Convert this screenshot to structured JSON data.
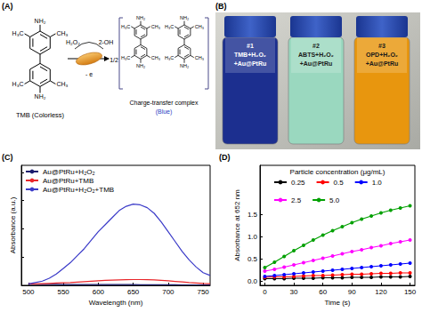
{
  "scheme": {
    "label": "(A)",
    "reactant": "TMB (Colorless)",
    "amine": "NH₂",
    "methyl_left": "H₃C",
    "methyl_right": "CH₃",
    "reagent": "H₂O₂",
    "radical": "2-OH",
    "electron": "- e",
    "coefficient": "1/2",
    "product_title": "Charge-transfer complex",
    "product_tag": "(Blue)"
  },
  "photo": {
    "label": "(B)",
    "vials": [
      {
        "lines": [
          "#1",
          "TMB+H₂O₂",
          "+Au@PtRu"
        ],
        "color": "#1c2f8f"
      },
      {
        "lines": [
          "#2",
          "ABTS+H₂O₂",
          "+Au@PtRu"
        ],
        "color": "#9ad8bf"
      },
      {
        "lines": [
          "#3",
          "OPD+H₂O₂",
          "+Au@PtRu"
        ],
        "color": "#e8960e"
      }
    ]
  },
  "chart_data": [
    {
      "type": "line",
      "panel_label": "(C)",
      "x_label": "Wavelength (nm)",
      "y_label": "Absorbance (a.u.)",
      "x": [
        500,
        510,
        520,
        530,
        540,
        550,
        560,
        570,
        580,
        590,
        600,
        610,
        620,
        630,
        640,
        650,
        660,
        670,
        680,
        690,
        700,
        710,
        720,
        730,
        740,
        750,
        760
      ],
      "xlim": [
        490,
        760
      ],
      "xticks": [
        500,
        550,
        600,
        650,
        700,
        750
      ],
      "ylim": [
        0,
        0.85
      ],
      "yticks": [
        0,
        0.2,
        0.4,
        0.6,
        0.8
      ],
      "tick_labels": "x",
      "grid": false,
      "legend": "upper left",
      "marker": "none",
      "series": [
        {
          "name": "Au@PtRu+H₂O₂",
          "color": "#1a1a6e",
          "values": [
            0.008,
            0.008,
            0.007,
            0.007,
            0.007,
            0.006,
            0.006,
            0.006,
            0.006,
            0.005,
            0.005,
            0.005,
            0.005,
            0.005,
            0.005,
            0.005,
            0.004,
            0.004,
            0.004,
            0.004,
            0.004,
            0.004,
            0.003,
            0.003,
            0.003,
            0.003,
            0.003
          ]
        },
        {
          "name": "Au@PtRu+TMB",
          "color": "#e8262a",
          "values": [
            0.01,
            0.01,
            0.012,
            0.014,
            0.016,
            0.018,
            0.02,
            0.023,
            0.026,
            0.029,
            0.032,
            0.035,
            0.037,
            0.039,
            0.04,
            0.041,
            0.041,
            0.04,
            0.038,
            0.035,
            0.032,
            0.028,
            0.024,
            0.02,
            0.017,
            0.014,
            0.012
          ]
        },
        {
          "name": "Au@PtRu+H₂O₂+TMB",
          "color": "#3a3ac8",
          "values": [
            0.01,
            0.02,
            0.03,
            0.05,
            0.08,
            0.12,
            0.16,
            0.21,
            0.26,
            0.32,
            0.38,
            0.43,
            0.48,
            0.53,
            0.56,
            0.575,
            0.57,
            0.55,
            0.51,
            0.45,
            0.38,
            0.31,
            0.24,
            0.18,
            0.13,
            0.09,
            0.07
          ]
        }
      ]
    },
    {
      "type": "line",
      "panel_label": "(D)",
      "legend_title": "Particle concentration (μg/mL)",
      "x_label": "Time (s)",
      "y_label": "Absorbance at 652 nm",
      "x": [
        0,
        10,
        20,
        30,
        40,
        50,
        60,
        70,
        80,
        90,
        100,
        110,
        120,
        130,
        140,
        150
      ],
      "xlim": [
        -5,
        155
      ],
      "xticks": [
        0,
        30,
        60,
        90,
        120,
        150
      ],
      "ylim": [
        -0.1,
        2.6
      ],
      "yticks": [
        {
          "value": 0,
          "label": "0.0"
        },
        0.5,
        {
          "value": 1,
          "label": "1.0"
        },
        1.5
      ],
      "grid": false,
      "legend": "upper center",
      "marker": "circle",
      "series": [
        {
          "name": "0.25",
          "color": "#000000",
          "values": [
            0.05,
            0.05,
            0.05,
            0.06,
            0.06,
            0.06,
            0.07,
            0.07,
            0.07,
            0.08,
            0.08,
            0.08,
            0.09,
            0.09,
            0.09,
            0.1
          ]
        },
        {
          "name": "0.5",
          "color": "#ff0000",
          "values": [
            0.08,
            0.09,
            0.09,
            0.1,
            0.11,
            0.12,
            0.12,
            0.13,
            0.14,
            0.15,
            0.15,
            0.16,
            0.17,
            0.17,
            0.18,
            0.18
          ]
        },
        {
          "name": "1.0",
          "color": "#0000ff",
          "values": [
            0.1,
            0.12,
            0.14,
            0.16,
            0.18,
            0.2,
            0.22,
            0.24,
            0.26,
            0.28,
            0.3,
            0.32,
            0.34,
            0.36,
            0.38,
            0.4
          ]
        },
        {
          "name": "2.5",
          "color": "#ff00ff",
          "values": [
            0.22,
            0.26,
            0.31,
            0.36,
            0.41,
            0.46,
            0.51,
            0.56,
            0.61,
            0.66,
            0.7,
            0.75,
            0.79,
            0.84,
            0.88,
            0.92
          ]
        },
        {
          "name": "5.0",
          "color": "#00a000",
          "values": [
            0.3,
            0.42,
            0.55,
            0.68,
            0.8,
            0.92,
            1.03,
            1.13,
            1.22,
            1.31,
            1.39,
            1.46,
            1.53,
            1.59,
            1.64,
            1.69
          ]
        }
      ]
    }
  ]
}
